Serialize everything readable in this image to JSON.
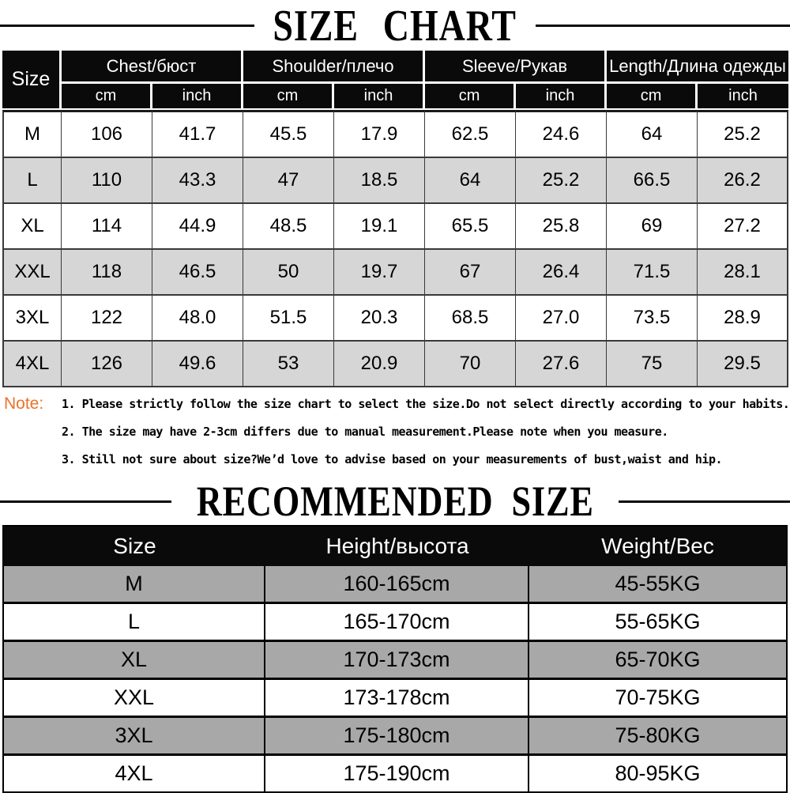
{
  "size_chart": {
    "title": "SIZE CHART",
    "header": {
      "size": "Size",
      "groups": [
        "Chest/бюст",
        "Shoulder/плечо",
        "Sleeve/Рукав",
        "Length/Длина одежды"
      ],
      "units": {
        "cm": "cm",
        "inch": "inch"
      }
    },
    "rows": [
      [
        "M",
        "106",
        "41.7",
        "45.5",
        "17.9",
        "62.5",
        "24.6",
        "64",
        "25.2"
      ],
      [
        "L",
        "110",
        "43.3",
        "47",
        "18.5",
        "64",
        "25.2",
        "66.5",
        "26.2"
      ],
      [
        "XL",
        "114",
        "44.9",
        "48.5",
        "19.1",
        "65.5",
        "25.8",
        "69",
        "27.2"
      ],
      [
        "XXL",
        "118",
        "46.5",
        "50",
        "19.7",
        "67",
        "26.4",
        "71.5",
        "28.1"
      ],
      [
        "3XL",
        "122",
        "48.0",
        "51.5",
        "20.3",
        "68.5",
        "27.0",
        "73.5",
        "28.9"
      ],
      [
        "4XL",
        "126",
        "49.6",
        "53",
        "20.9",
        "70",
        "27.6",
        "75",
        "29.5"
      ]
    ]
  },
  "notes": {
    "label": "Note:",
    "items": [
      "1. Please strictly follow the size chart to select the size.Do not select directly according to your habits.",
      "2. The size may have 2-3cm differs due to manual measurement.Please note when you measure.",
      "3. Still not sure about size?We’d love to advise based on your measurements of bust,waist and hip."
    ]
  },
  "recommended": {
    "title": "RECOMMENDED SIZE",
    "headers": [
      "Size",
      "Height/высота",
      "Weight/Вес"
    ],
    "rows": [
      [
        "M",
        "160-165cm",
        "45-55KG"
      ],
      [
        "L",
        "165-170cm",
        "55-65KG"
      ],
      [
        "XL",
        "170-173cm",
        "65-70KG"
      ],
      [
        "XXL",
        "173-178cm",
        "70-75KG"
      ],
      [
        "3XL",
        "175-180cm",
        "75-80KG"
      ],
      [
        "4XL",
        "175-190cm",
        "80-95KG"
      ]
    ]
  },
  "colors": {
    "header_bg": "#0a0a0a",
    "header_text": "#ffffff",
    "table1_alt_row": "#d6d6d6",
    "table2_alt_row": "#a8a8a8",
    "note_accent": "#ed7228",
    "border_dark": "#3a3a3a"
  }
}
